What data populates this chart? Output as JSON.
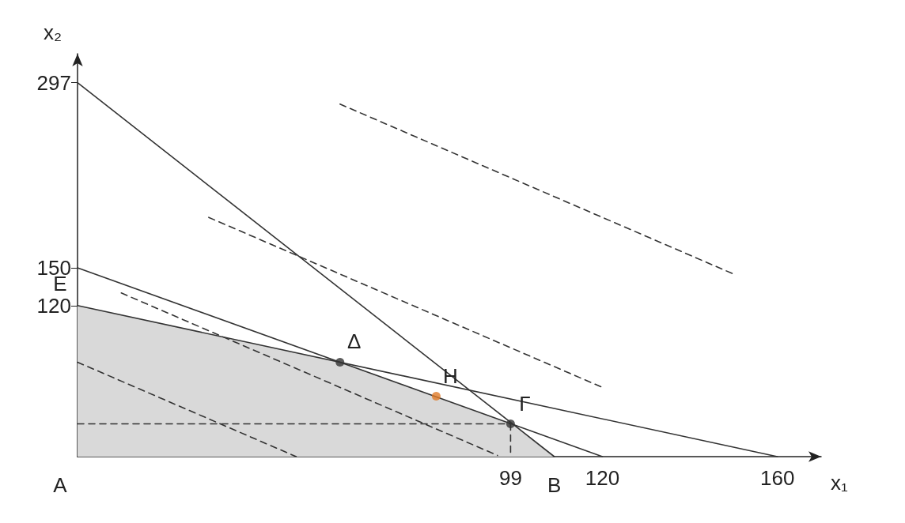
{
  "chart_data": {
    "type": "line",
    "xlabel": "x₁",
    "ylabel": "x₂",
    "xlim": [
      0,
      170
    ],
    "xticks": [
      99,
      120,
      160
    ],
    "ylim": [
      0,
      320
    ],
    "yticks": [
      120,
      150,
      297
    ],
    "grid": false,
    "marker": "none",
    "line_style": "solid",
    "series": [
      {
        "type": "area",
        "color": "#d9d9d9",
        "x": [
          0,
          60,
          99,
          109
        ],
        "values": [
          120,
          75,
          26,
          0
        ]
      },
      {
        "color": "#333333",
        "x": [
          0,
          109
        ],
        "values": [
          297,
          0
        ]
      },
      {
        "color": "#333333",
        "x": [
          0,
          120
        ],
        "values": [
          150,
          0
        ]
      },
      {
        "color": "#333333",
        "x": [
          0,
          160
        ],
        "values": [
          120,
          0
        ]
      },
      {
        "color": "#333333",
        "line_style": "dashed",
        "x": [
          0,
          99
        ],
        "values": [
          26,
          26
        ]
      },
      {
        "color": "#333333",
        "line_style": "dashed",
        "x": [
          99,
          99
        ],
        "values": [
          26,
          0
        ]
      },
      {
        "color": "#333333",
        "line_style": "dashed",
        "x": [
          0,
          50
        ],
        "values": [
          75,
          0
        ]
      },
      {
        "color": "#333333",
        "line_style": "dashed",
        "x": [
          10,
          96
        ],
        "values": [
          130,
          1
        ]
      },
      {
        "color": "#333333",
        "line_style": "dashed",
        "x": [
          30,
          120
        ],
        "values": [
          190,
          55
        ]
      },
      {
        "color": "#333333",
        "line_style": "dashed",
        "x": [
          60,
          150
        ],
        "values": [
          280,
          145
        ]
      },
      {
        "type": "scatter",
        "marker": "circle",
        "colors": [
          "#333333",
          "#e07b28",
          "#333333"
        ],
        "x": [
          60,
          82,
          99
        ],
        "values": [
          75,
          48,
          26
        ]
      }
    ],
    "annotations": [
      {
        "text": "A",
        "x": 0,
        "y": 0
      },
      {
        "text": "B",
        "x": 109,
        "y": 0
      },
      {
        "text": "Γ",
        "x": 99,
        "y": 26
      },
      {
        "text": "Δ",
        "x": 60,
        "y": 75
      },
      {
        "text": "E",
        "x": 0,
        "y": 120
      },
      {
        "text": "H",
        "x": 82,
        "y": 48
      }
    ]
  }
}
